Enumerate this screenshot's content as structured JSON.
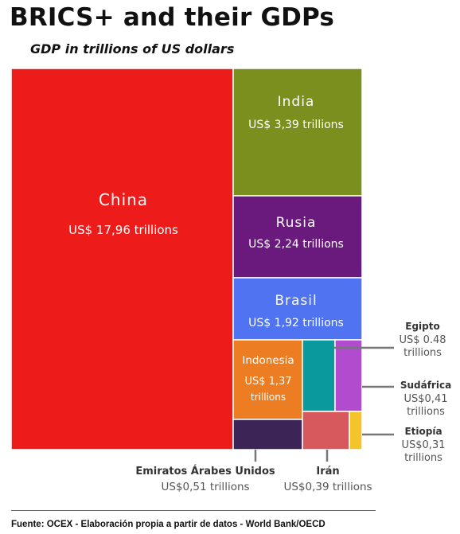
{
  "header": {
    "title": "BRICS+ and their GDPs",
    "subtitle": "GDP in trillions of US dollars"
  },
  "chart_data": {
    "type": "treemap",
    "title": "BRICS+ and their GDPs",
    "subtitle": "GDP in trillions of US dollars",
    "unit": "trillions of US dollars",
    "items": [
      {
        "name": "China",
        "value": 17.96,
        "label": "US$ 17,96 trillions",
        "color": "#ee1b1b"
      },
      {
        "name": "India",
        "value": 3.39,
        "label": "US$ 3,39 trillions",
        "color": "#7b8f1f"
      },
      {
        "name": "Rusia",
        "value": 2.24,
        "label": "US$ 2,24 trillions",
        "color": "#6a1a7c"
      },
      {
        "name": "Brasil",
        "value": 1.92,
        "label": "US$ 1,92 trillions",
        "color": "#4f73f1"
      },
      {
        "name": "Indonesia",
        "value": 1.37,
        "label": "US$ 1,37 trillions",
        "color": "#ed7d22"
      },
      {
        "name": "Egipto",
        "value": 0.48,
        "label": "US$ 0.48 trillions",
        "color": "#0a9a9e"
      },
      {
        "name": "Sudáfrica",
        "value": 0.41,
        "label": "US$0,41 trillions",
        "color": "#b04ccd"
      },
      {
        "name": "Emiratos Árabes Unidos",
        "value": 0.51,
        "label": "US$0,51 trillions",
        "color": "#3d2456"
      },
      {
        "name": "Irán",
        "value": 0.39,
        "label": "US$0,39 trillions",
        "color": "#d7595d"
      },
      {
        "name": "Etiopía",
        "value": 0.31,
        "label": "US$0,31 trillions",
        "color": "#f3c52a"
      }
    ]
  },
  "footer": {
    "source": "Fuente: OCEX - Elaboración propia a partir de datos - World Bank/OECD"
  }
}
